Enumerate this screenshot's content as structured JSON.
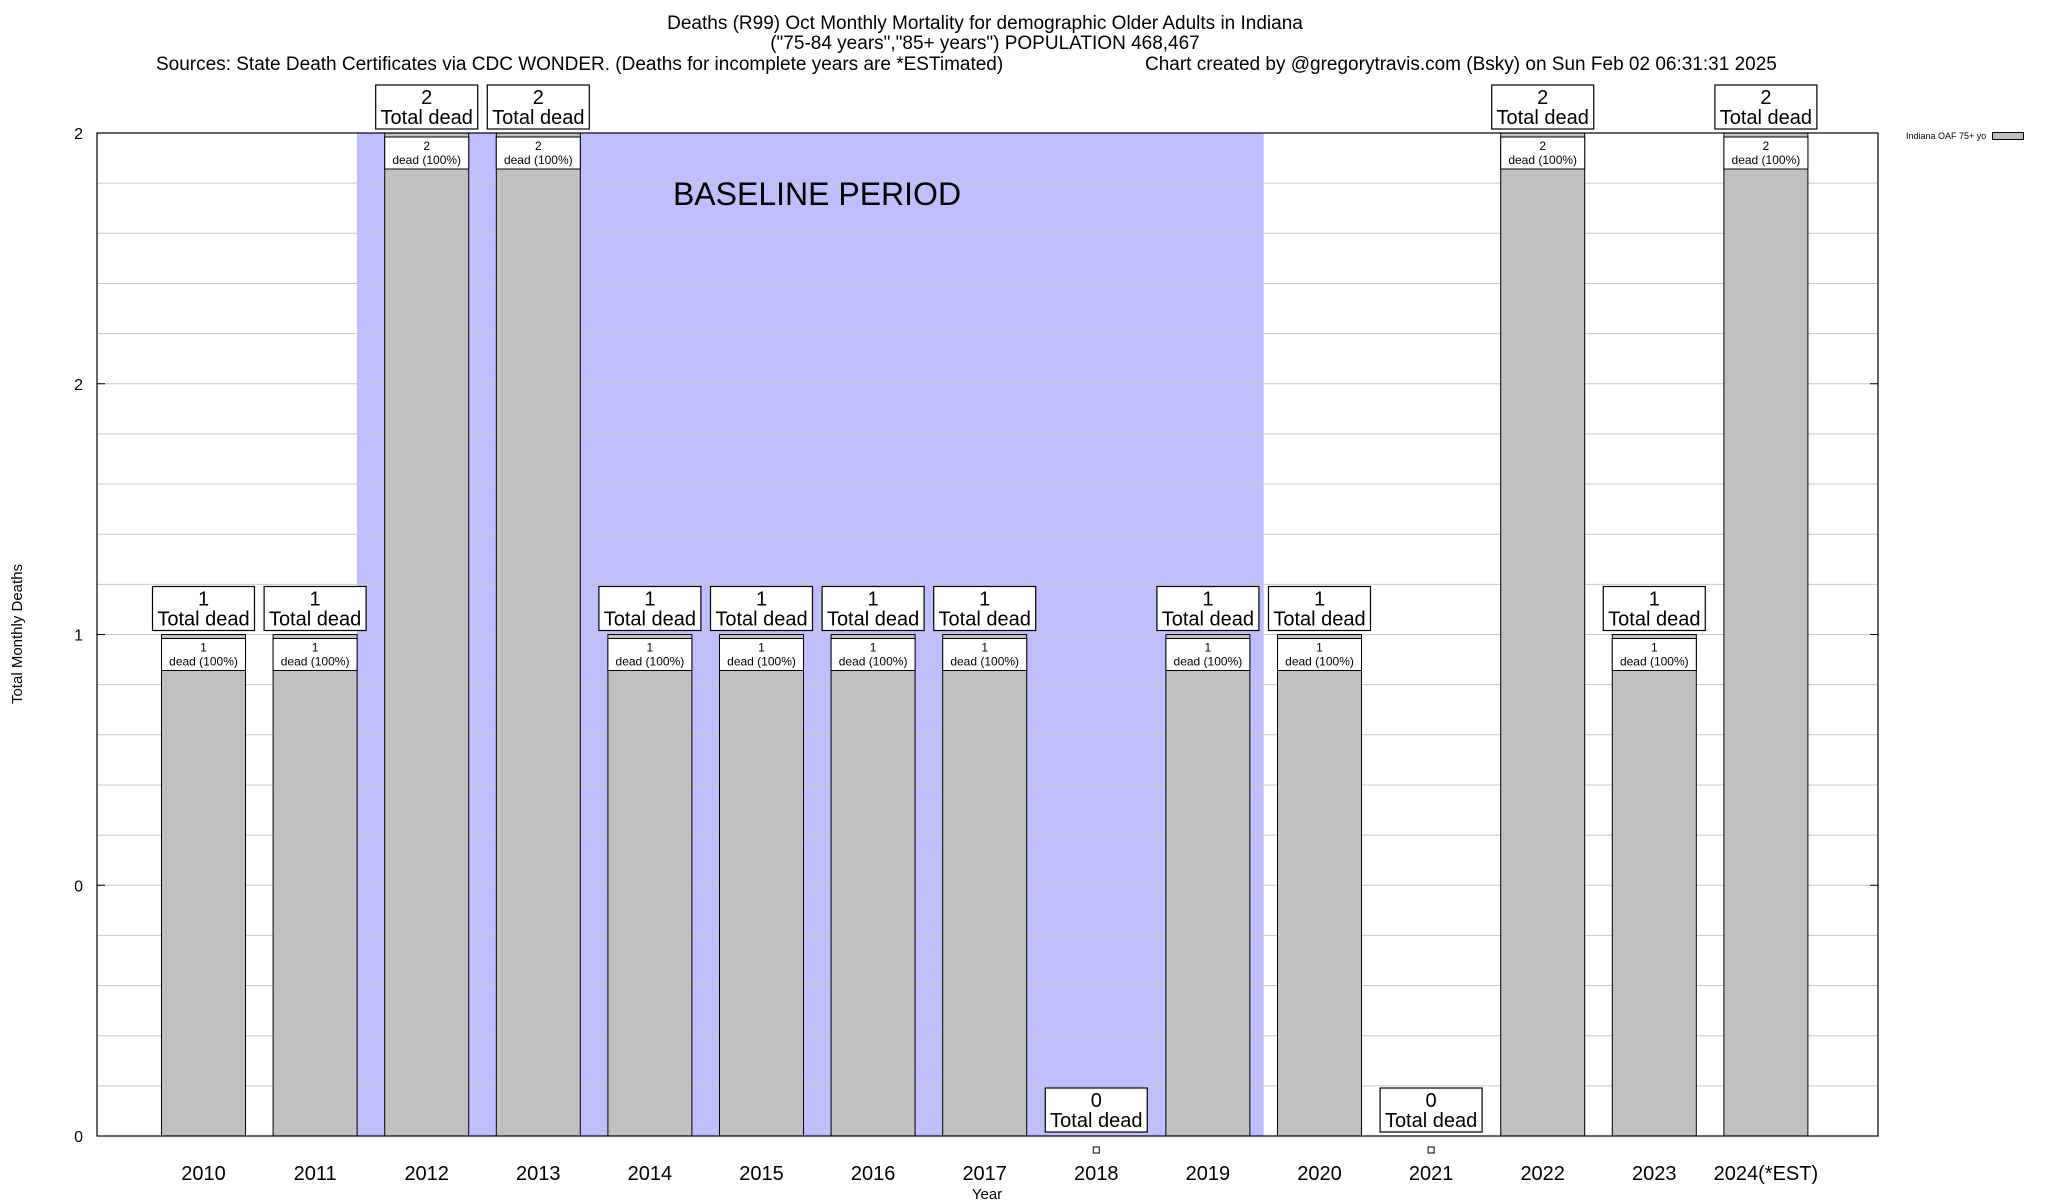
{
  "title": {
    "line1": "Deaths (R99) Oct Monthly Mortality for demographic Older Adults in Indiana",
    "line2": "(\"75-84 years\",\"85+ years\") POPULATION 468,467",
    "line3_left": "Sources: State Death Certificates via CDC WONDER. (Deaths for incomplete years are *ESTimated)",
    "line3_right": "Chart created by @gregorytravis.com (Bsky) on Sun Feb 02 06:31:31 2025"
  },
  "legend": {
    "label": "Indiana OAF 75+ yo"
  },
  "chart_data": {
    "type": "bar",
    "xlabel": "Year",
    "ylabel": "Total Monthly Deaths",
    "ylim": [
      0,
      2
    ],
    "y_tick_labels": [
      "0",
      "0",
      "1",
      "2",
      "2"
    ],
    "categories": [
      "2010",
      "2011",
      "2012",
      "2013",
      "2014",
      "2015",
      "2016",
      "2017",
      "2018",
      "2019",
      "2020",
      "2021",
      "2022",
      "2023",
      "2024(*EST)"
    ],
    "series": [
      {
        "name": "Indiana OAF 75+ yo",
        "values": [
          1,
          1,
          2,
          2,
          1,
          1,
          1,
          1,
          0,
          1,
          1,
          0,
          2,
          1,
          2
        ]
      }
    ],
    "total_labels": [
      "Total dead",
      "Total dead",
      "Total dead",
      "Total dead",
      "Total dead",
      "Total dead",
      "Total dead",
      "Total dead",
      "Total dead",
      "Total dead",
      "Total dead",
      "Total dead",
      "Total dead",
      "Total dead",
      "Total dead"
    ],
    "inner_labels": [
      "dead (100%)",
      "dead (100%)",
      "dead (100%)",
      "dead (100%)",
      "dead (100%)",
      "dead (100%)",
      "dead (100%)",
      "dead (100%)",
      "",
      "dead (100%)",
      "dead (100%)",
      "",
      "dead (100%)",
      "dead (100%)",
      "dead (100%)"
    ],
    "baseline": {
      "label": "BASELINE PERIOD",
      "from": "2012",
      "to": "2019"
    },
    "colors": {
      "bar": "#c0c0c0",
      "baseline": "#bfbffe",
      "grid": "#c8c8c8"
    },
    "grid": true,
    "legend_position": "top-right, outside plot"
  }
}
